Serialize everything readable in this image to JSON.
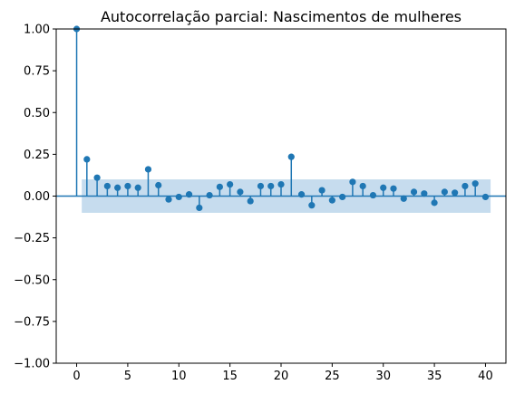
{
  "chart_data": {
    "type": "stem",
    "title": "Autocorrelação parcial: Nascimentos de mulheres",
    "xlabel": "",
    "ylabel": "",
    "xlim": [
      -2,
      42
    ],
    "ylim": [
      -1.0,
      1.0
    ],
    "x_ticks": [
      0,
      5,
      10,
      15,
      20,
      25,
      30,
      35,
      40
    ],
    "y_ticks": [
      1.0,
      0.75,
      0.5,
      0.25,
      0.0,
      -0.25,
      -0.5,
      -0.75,
      -1.0
    ],
    "y_tick_labels": [
      "1.00",
      "0.75",
      "0.50",
      "0.25",
      "0.00",
      "−0.25",
      "−0.50",
      "−0.75",
      "−1.00"
    ],
    "confidence_band": {
      "lower": -0.1,
      "upper": 0.1,
      "x_start": 0.5,
      "x_end": 40.5
    },
    "series": [
      {
        "lags": [
          0,
          1,
          2,
          3,
          4,
          5,
          6,
          7,
          8,
          9,
          10,
          11,
          12,
          13,
          14,
          15,
          16,
          17,
          18,
          19,
          20,
          21,
          22,
          23,
          24,
          25,
          26,
          27,
          28,
          29,
          30,
          31,
          32,
          33,
          34,
          35,
          36,
          37,
          38,
          39,
          40
        ],
        "values": [
          1.0,
          0.22,
          0.11,
          0.06,
          0.05,
          0.06,
          0.05,
          0.16,
          0.065,
          -0.02,
          -0.005,
          0.01,
          -0.07,
          0.005,
          0.055,
          0.07,
          0.025,
          -0.03,
          0.06,
          0.06,
          0.07,
          0.235,
          0.01,
          -0.055,
          0.035,
          -0.025,
          -0.005,
          0.085,
          0.06,
          0.005,
          0.05,
          0.045,
          -0.015,
          0.025,
          0.015,
          -0.04,
          0.025,
          0.02,
          0.06,
          0.075,
          -0.005
        ]
      }
    ],
    "colors": {
      "stem": "#1f77b4",
      "band": "#c6dcee",
      "axes": "#000000"
    },
    "grid": false,
    "legend": "none"
  }
}
